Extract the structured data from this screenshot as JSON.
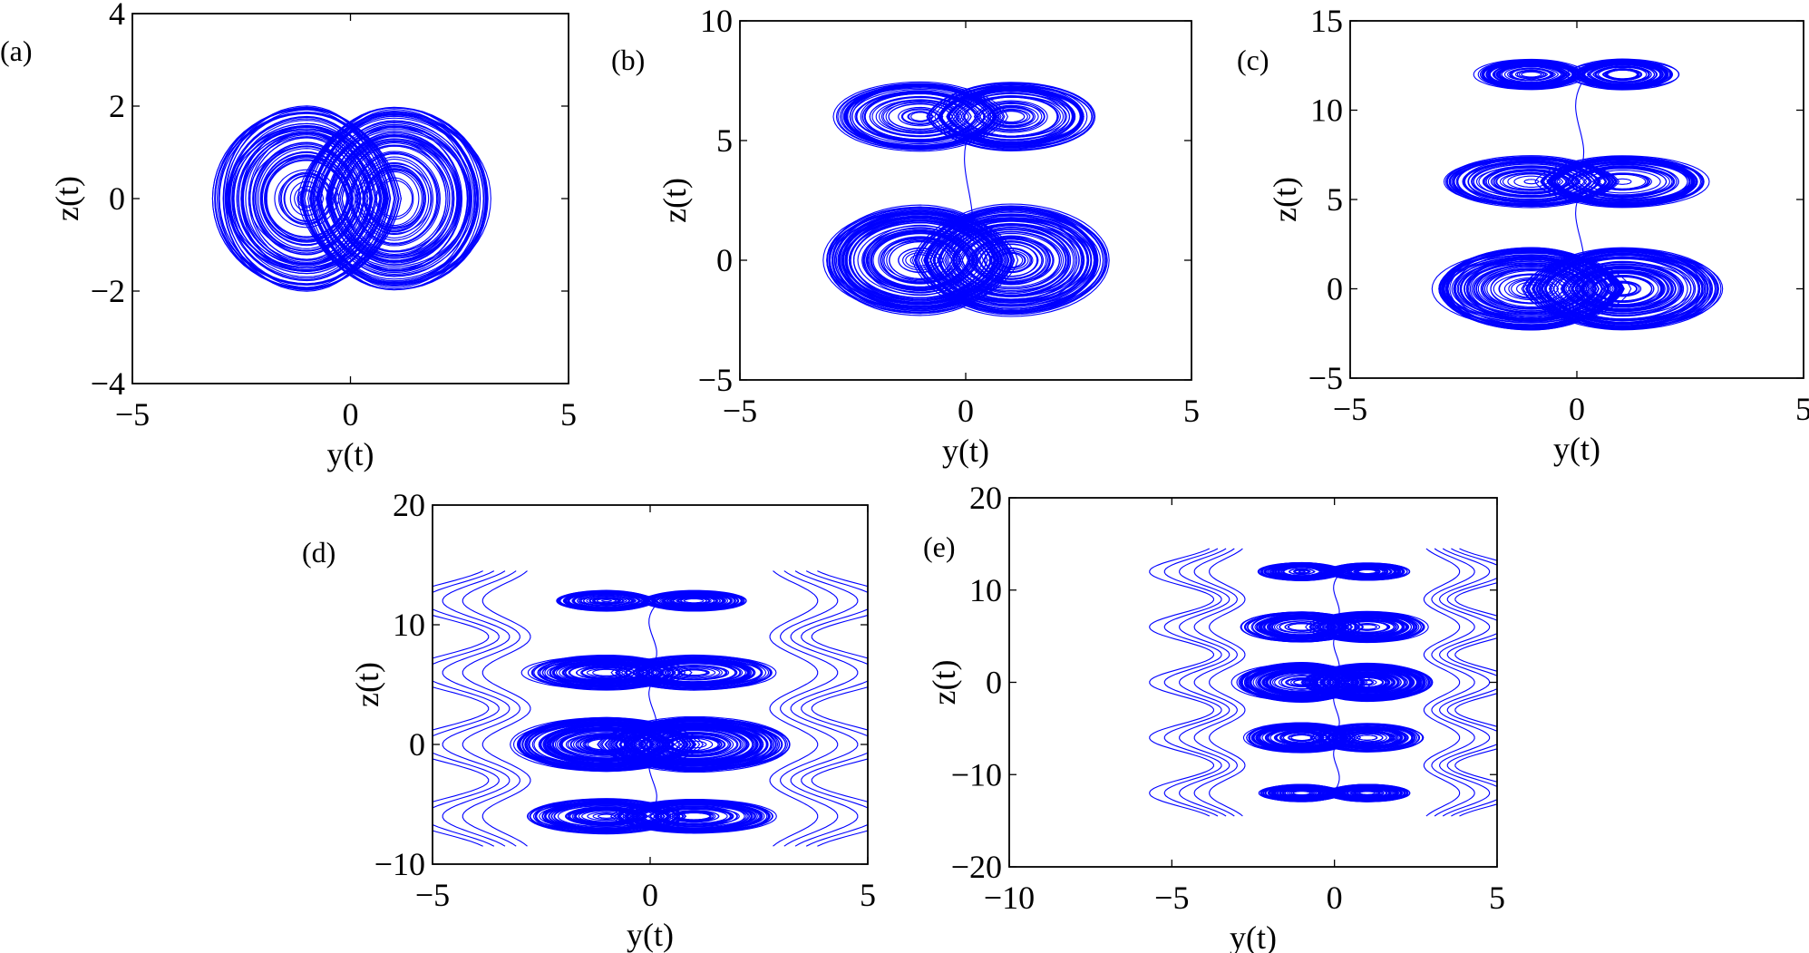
{
  "chart_data": [
    {
      "panel_label": "(a)",
      "type": "line",
      "xlabel": "y(t)",
      "ylabel": "z(t)",
      "xlim": [
        -5,
        5
      ],
      "ylim": [
        -4,
        4
      ],
      "xticks": [
        "−5",
        "0",
        "5"
      ],
      "yticks": [
        "−4",
        "−2",
        "0",
        "2",
        "4"
      ],
      "xtick_values": [
        -5,
        0,
        5
      ],
      "ytick_values": [
        -4,
        -2,
        0,
        2,
        4
      ],
      "scroll_centers_z": [
        0
      ],
      "color": "#0000ff",
      "grid": false
    },
    {
      "panel_label": "(b)",
      "type": "line",
      "xlabel": "y(t)",
      "ylabel": "z(t)",
      "xlim": [
        -5,
        5
      ],
      "ylim": [
        -5,
        10
      ],
      "xticks": [
        "−5",
        "0",
        "5"
      ],
      "yticks": [
        "−5",
        "0",
        "5",
        "10"
      ],
      "xtick_values": [
        -5,
        0,
        5
      ],
      "ytick_values": [
        -5,
        0,
        5,
        10
      ],
      "scroll_centers_z": [
        0,
        6
      ],
      "color": "#0000ff",
      "grid": false
    },
    {
      "panel_label": "(c)",
      "type": "line",
      "xlabel": "y(t)",
      "ylabel": "z(t)",
      "xlim": [
        -5,
        5
      ],
      "ylim": [
        -5,
        15
      ],
      "xticks": [
        "−5",
        "0",
        "5"
      ],
      "yticks": [
        "−5",
        "0",
        "5",
        "10",
        "15"
      ],
      "xtick_values": [
        -5,
        0,
        5
      ],
      "ytick_values": [
        -5,
        0,
        5,
        10,
        15
      ],
      "scroll_centers_z": [
        0,
        6,
        12
      ],
      "color": "#0000ff",
      "grid": false
    },
    {
      "panel_label": "(d)",
      "type": "line",
      "xlabel": "y(t)",
      "ylabel": "z(t)",
      "xlim": [
        -5,
        5
      ],
      "ylim": [
        -10,
        20
      ],
      "xticks": [
        "−5",
        "0",
        "5"
      ],
      "yticks": [
        "−10",
        "0",
        "10",
        "20"
      ],
      "xtick_values": [
        -5,
        0,
        5
      ],
      "ytick_values": [
        -10,
        0,
        10,
        20
      ],
      "scroll_centers_z": [
        -6,
        0,
        6,
        12
      ],
      "color": "#0000ff",
      "grid": false
    },
    {
      "panel_label": "(e)",
      "type": "line",
      "xlabel": "y(t)",
      "ylabel": "z(t)",
      "xlim": [
        -10,
        5
      ],
      "ylim": [
        -20,
        20
      ],
      "xticks": [
        "−10",
        "−5",
        "0",
        "5"
      ],
      "yticks": [
        "−20",
        "−10",
        "0",
        "10",
        "20"
      ],
      "xtick_values": [
        -10,
        -5,
        0,
        5
      ],
      "ytick_values": [
        -20,
        -10,
        0,
        10,
        20
      ],
      "scroll_centers_z": [
        -12,
        -6,
        0,
        6,
        12
      ],
      "color": "#0000ff",
      "grid": false
    }
  ]
}
